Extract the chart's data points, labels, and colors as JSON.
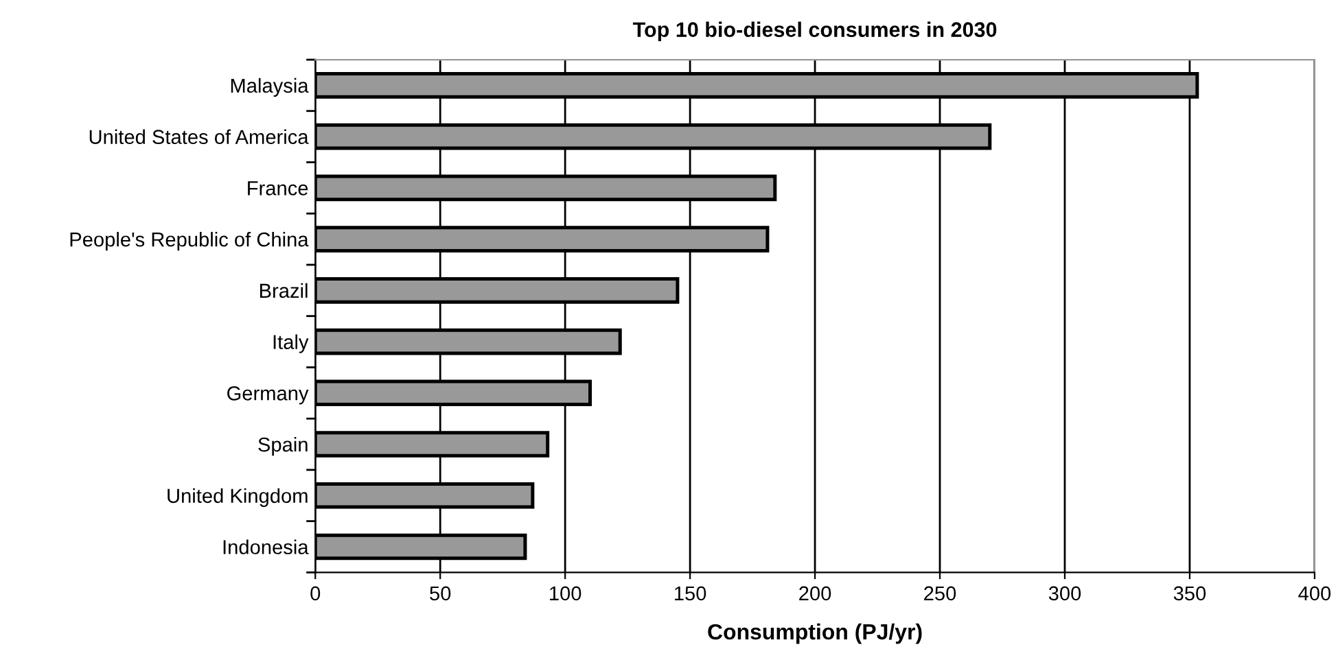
{
  "chart_data": {
    "type": "bar",
    "orientation": "horizontal",
    "title": "Top 10 bio-diesel consumers in 2030",
    "xlabel": "Consumption (PJ/yr)",
    "categories": [
      "Malaysia",
      "United States of America",
      "France",
      "People's Republic of China",
      "Brazil",
      "Italy",
      "Germany",
      "Spain",
      "United Kingdom",
      "Indonesia"
    ],
    "values": [
      353,
      270,
      184,
      181,
      145,
      122,
      110,
      93,
      87,
      84
    ],
    "color": "#999999",
    "xlim": [
      0,
      400
    ],
    "xticks": [
      0,
      50,
      100,
      150,
      200,
      250,
      300,
      350,
      400
    ],
    "grid": "x",
    "legend": false
  }
}
